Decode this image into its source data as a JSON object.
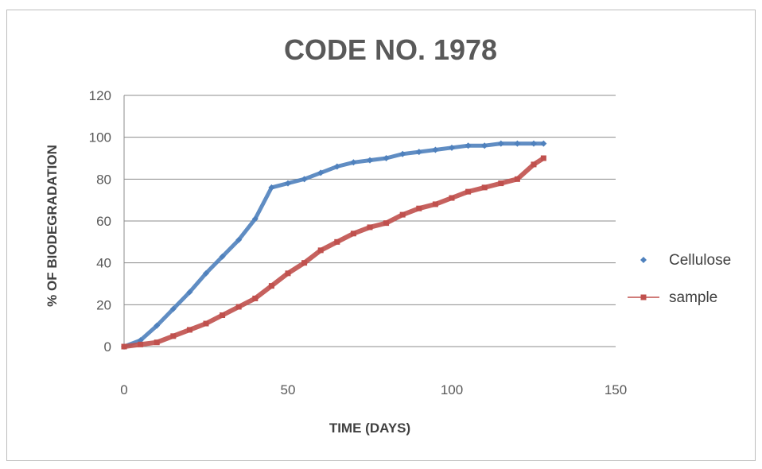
{
  "chart_data": {
    "type": "scatter",
    "title": "CODE NO. 1978",
    "xlabel": "TIME (DAYS)",
    "ylabel": "% OF BIODEGRADATION",
    "xlim": [
      0,
      150
    ],
    "ylim": [
      0,
      120
    ],
    "x_ticks": [
      "0",
      "50",
      "100",
      "150"
    ],
    "y_ticks": [
      "0",
      "20",
      "40",
      "60",
      "80",
      "100",
      "120"
    ],
    "grid": "horizontal",
    "legend_position": "right",
    "series": [
      {
        "name": "Cellulose",
        "color": "#4f81bd",
        "marker": "diamond",
        "x": [
          0,
          5,
          10,
          15,
          20,
          25,
          30,
          35,
          40,
          45,
          50,
          55,
          60,
          65,
          70,
          75,
          80,
          85,
          90,
          95,
          100,
          105,
          110,
          115,
          120,
          125,
          128
        ],
        "y": [
          0,
          3,
          10,
          18,
          26,
          35,
          43,
          51,
          61,
          76,
          78,
          80,
          83,
          86,
          88,
          89,
          90,
          92,
          93,
          94,
          95,
          96,
          96,
          97,
          97,
          97,
          97
        ]
      },
      {
        "name": "sample",
        "color": "#c0504d",
        "marker": "square",
        "x": [
          0,
          5,
          10,
          15,
          20,
          25,
          30,
          35,
          40,
          45,
          50,
          55,
          60,
          65,
          70,
          75,
          80,
          85,
          90,
          95,
          100,
          105,
          110,
          115,
          120,
          125,
          128
        ],
        "y": [
          0,
          1,
          2,
          5,
          8,
          11,
          15,
          19,
          23,
          29,
          35,
          40,
          46,
          50,
          54,
          57,
          59,
          63,
          66,
          68,
          71,
          74,
          76,
          78,
          80,
          87,
          90
        ]
      }
    ]
  }
}
